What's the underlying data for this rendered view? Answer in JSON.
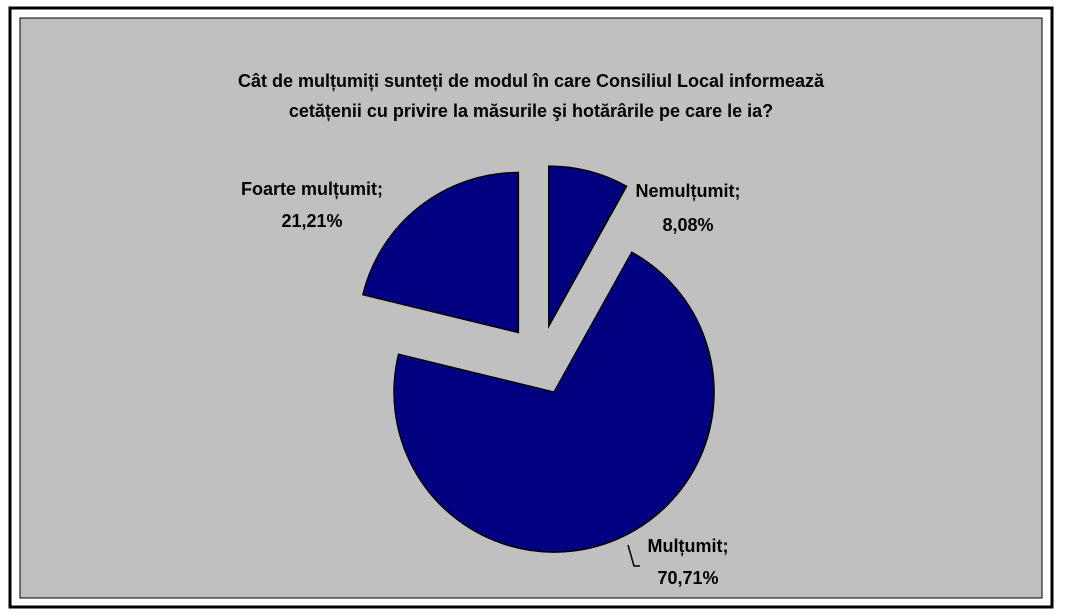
{
  "chart_data": {
    "type": "pie",
    "title": [
      "Cât de mulțumiți sunteți de modul în care Consiliul Local informează",
      "cetățenii cu privire la măsurile şi hotărârile pe care le ia?"
    ],
    "categories": [
      "Nemulțumit;",
      "Mulțumit;",
      "Foarte mulțumit;"
    ],
    "values": [
      8.08,
      70.71,
      21.21
    ],
    "value_labels": [
      "8,08%",
      "70,71%",
      "21,21%"
    ],
    "color": "#000080"
  }
}
